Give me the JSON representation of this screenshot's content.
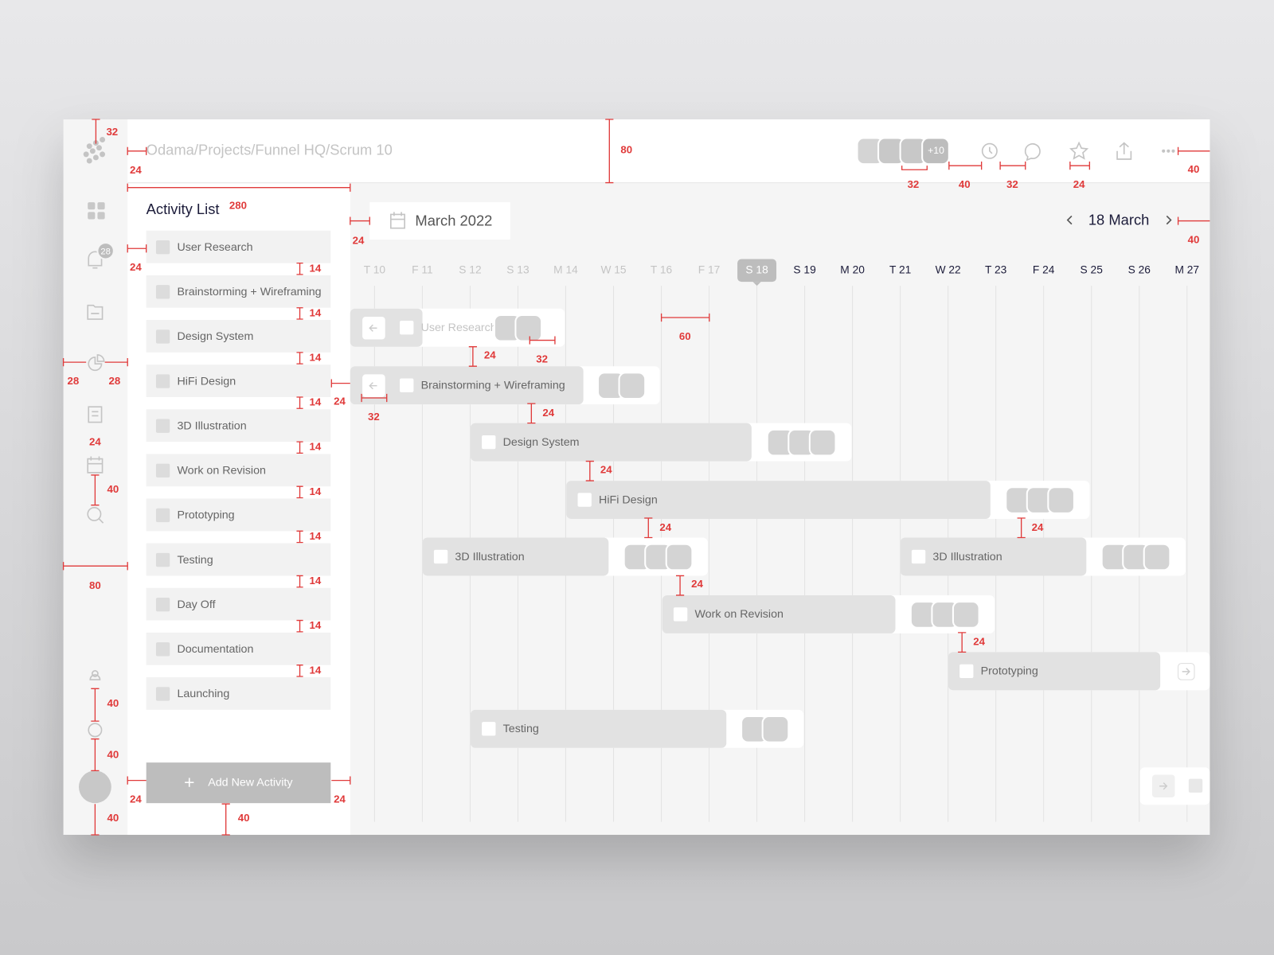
{
  "header": {
    "breadcrumb": "Odama/Projects/Funnel HQ/Scrum 10",
    "avatar_more": "+10"
  },
  "sidebar": {
    "notification_count": "28"
  },
  "activity_list": {
    "title": "Activity List",
    "items": [
      "User Research",
      "Brainstorming + Wireframing",
      "Design System",
      "HiFi Design",
      "3D Illustration",
      "Work on Revision",
      "Prototyping",
      "Testing",
      "Day Off",
      "Documentation",
      "Launching"
    ],
    "add_button": "Add New Activity"
  },
  "timeline": {
    "month": "March 2022",
    "current_date": "18 March",
    "days": [
      "T 10",
      "F 11",
      "S 12",
      "S 13",
      "M 14",
      "W 15",
      "T 16",
      "F 17",
      "S 18",
      "S 19",
      "M 20",
      "T 21",
      "W 22",
      "T 23",
      "F 24",
      "S 25",
      "S 26",
      "M 27"
    ],
    "bars": [
      {
        "label": "User Research"
      },
      {
        "label": "Brainstorming + Wireframing"
      },
      {
        "label": "Design System"
      },
      {
        "label": "HiFi Design"
      },
      {
        "label": "3D Illustration"
      },
      {
        "label": "3D Illustration"
      },
      {
        "label": "Work on Revision"
      },
      {
        "label": "Prototyping"
      },
      {
        "label": "Testing"
      }
    ]
  },
  "annotations": [
    "32",
    "24",
    "80",
    "32",
    "40",
    "32",
    "24",
    "40",
    "280",
    "24",
    "40",
    "24",
    "14",
    "14",
    "14",
    "14",
    "14",
    "14",
    "14",
    "14",
    "14",
    "14",
    "60",
    "24",
    "32",
    "28",
    "28",
    "24",
    "24",
    "32",
    "24",
    "24",
    "40",
    "24",
    "24",
    "80",
    "24",
    "24",
    "40",
    "40",
    "24",
    "24",
    "40",
    "40"
  ]
}
